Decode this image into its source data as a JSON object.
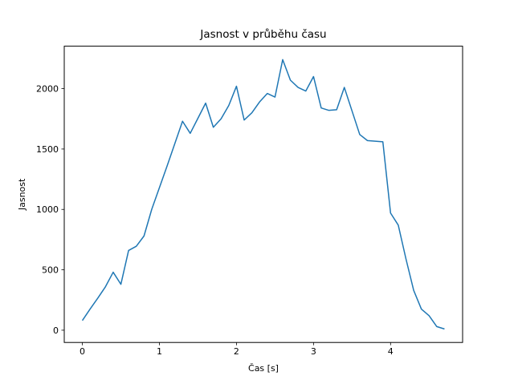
{
  "figure": {
    "background": "#ffffff",
    "axes_background": "#ffffff",
    "spine_color": "#000000"
  },
  "chart_data": {
    "type": "line",
    "title": "Jasnost v průběhu času",
    "xlabel": "Čas [s]",
    "ylabel": "Jasnost",
    "line_color": "#1f77b4",
    "line_width": 1.5,
    "grid": false,
    "legend": null,
    "xticks": [
      0,
      1,
      2,
      3,
      4
    ],
    "yticks": [
      0,
      500,
      1000,
      1500,
      2000
    ],
    "xlim": [
      -0.235,
      4.935
    ],
    "ylim": [
      -101.5,
      2351.5
    ],
    "x": [
      0.0,
      0.1,
      0.2,
      0.3,
      0.4,
      0.5,
      0.6,
      0.7,
      0.8,
      0.9,
      1.0,
      1.1,
      1.2,
      1.3,
      1.4,
      1.5,
      1.6,
      1.7,
      1.8,
      1.9,
      2.0,
      2.1,
      2.2,
      2.3,
      2.4,
      2.5,
      2.6,
      2.7,
      2.8,
      2.9,
      3.0,
      3.1,
      3.2,
      3.3,
      3.4,
      3.5,
      3.6,
      3.7,
      3.8,
      3.9,
      4.0,
      4.1,
      4.2,
      4.3,
      4.4,
      4.5,
      4.6,
      4.7
    ],
    "y": [
      80,
      175,
      265,
      360,
      480,
      380,
      660,
      695,
      780,
      1000,
      1180,
      1360,
      1545,
      1730,
      1630,
      1755,
      1880,
      1680,
      1750,
      1860,
      2020,
      1740,
      1800,
      1890,
      1960,
      1930,
      2240,
      2070,
      2010,
      1980,
      2100,
      1840,
      1820,
      1825,
      2010,
      1815,
      1620,
      1570,
      1565,
      1560,
      970,
      870,
      590,
      330,
      175,
      120,
      30,
      10
    ]
  }
}
